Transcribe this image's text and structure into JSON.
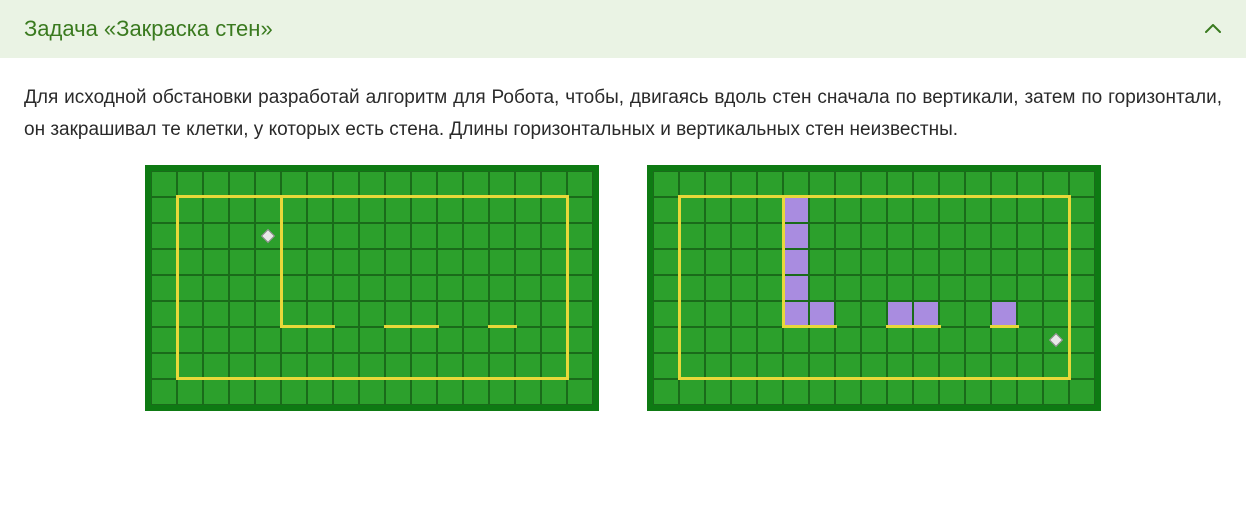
{
  "header": {
    "title": "Задача «Закраска стен»"
  },
  "body": {
    "text": "Для исходной обстановки разработай алгоритм для Робота, чтобы, двигаясь вдоль стен сначала по вертикали, затем по горизонтали, он закрашивал те клетки, у которых есть стена. Длины горизонтальных и вертикальных стен неизвестны."
  },
  "grid": {
    "cols": 17,
    "rows": 9,
    "cell_size": 26,
    "cell_bg": "#2ca02c",
    "cell_border": "#1a6b1a",
    "field_bg": "#0e7a13",
    "wall_color": "#e8d83a",
    "paint_color": "#a98ce0",
    "wall_thickness": 3,
    "outer_border": {
      "top_row": 1,
      "bottom_row": 8,
      "left_col": 1,
      "right_col": 16
    },
    "inner_walls": [
      {
        "type": "v",
        "col": 5,
        "r1": 1,
        "r2": 6
      },
      {
        "type": "h",
        "row": 6,
        "c1": 5,
        "c2": 7
      },
      {
        "type": "h",
        "row": 6,
        "c1": 9,
        "c2": 11
      },
      {
        "type": "h",
        "row": 6,
        "c1": 13,
        "c2": 14
      }
    ]
  },
  "left_grid": {
    "robot": {
      "row": 2,
      "col": 4
    },
    "painted": []
  },
  "right_grid": {
    "robot": {
      "row": 6,
      "col": 15
    },
    "painted": [
      {
        "row": 1,
        "col": 5
      },
      {
        "row": 2,
        "col": 5
      },
      {
        "row": 3,
        "col": 5
      },
      {
        "row": 4,
        "col": 5
      },
      {
        "row": 5,
        "col": 5
      },
      {
        "row": 5,
        "col": 6
      },
      {
        "row": 5,
        "col": 9
      },
      {
        "row": 5,
        "col": 10
      },
      {
        "row": 5,
        "col": 13
      }
    ]
  }
}
